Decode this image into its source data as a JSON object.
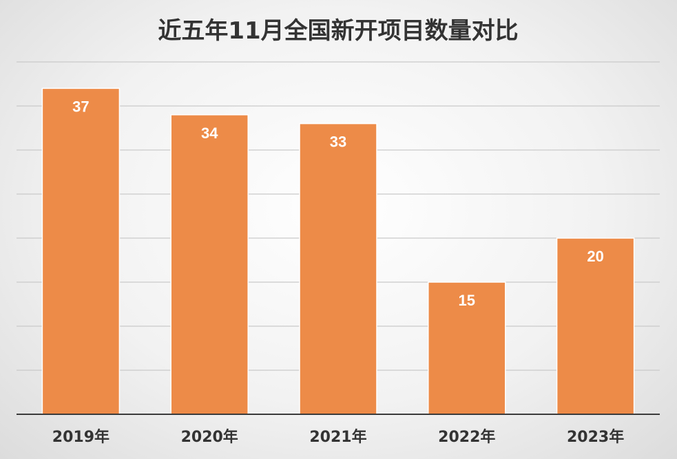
{
  "chart_data": {
    "type": "bar",
    "title": "近五年11月全国新开项目数量对比",
    "categories": [
      "2019年",
      "2020年",
      "2021年",
      "2022年",
      "2023年"
    ],
    "values": [
      37,
      34,
      33,
      15,
      20
    ],
    "xlabel": "",
    "ylabel": "",
    "ylim": [
      0,
      40
    ],
    "grid": true,
    "legend": "none",
    "colors": {
      "bar": "#ED8B48",
      "bar_border": "#ffffff",
      "value_label": "#ffffff",
      "grid": "#c9c9c9",
      "axis": "#3a3a3a",
      "text": "#333333"
    }
  }
}
